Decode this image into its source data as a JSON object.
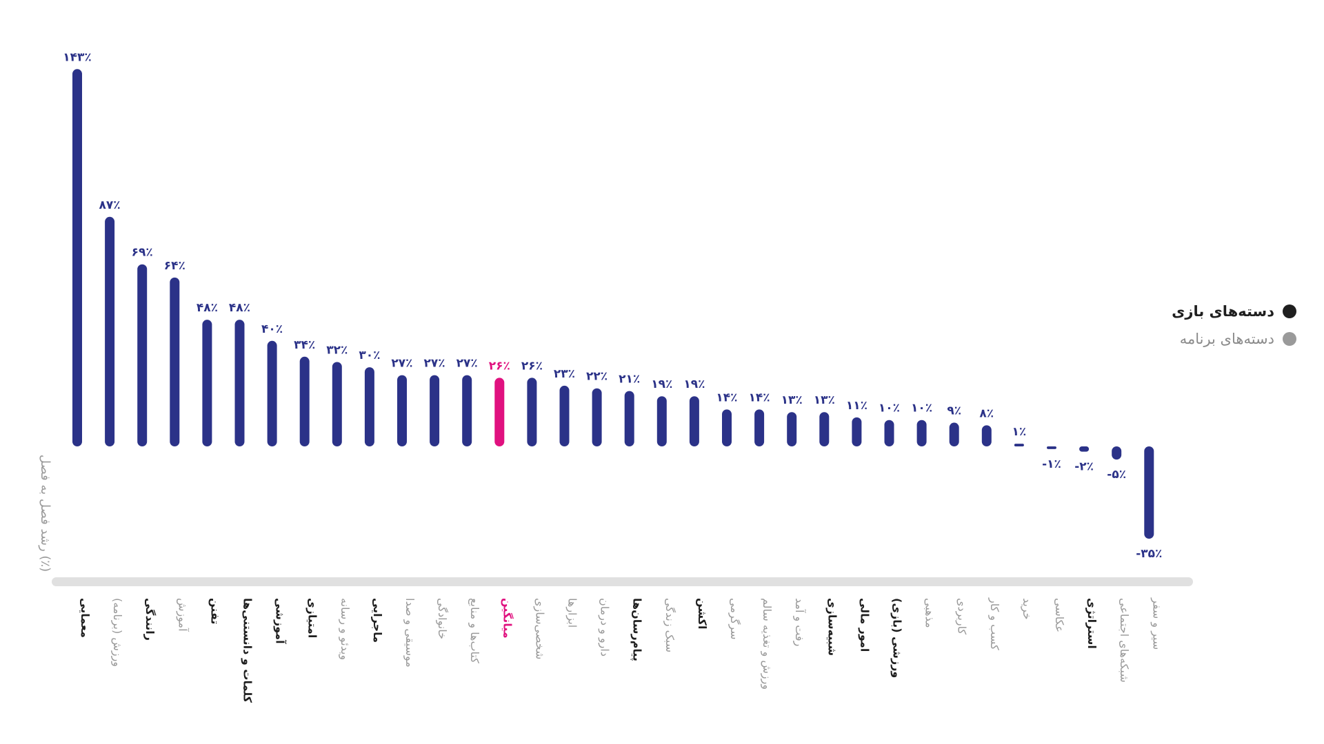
{
  "chart_data": {
    "type": "bar",
    "ylabel": "رشد فصل به فصل (٪)",
    "ylim": [
      -40,
      150
    ],
    "grid": false,
    "legend_position": "right",
    "colors": {
      "bar": "#2b3288",
      "highlight": "#e0117f",
      "game_label": "#1f1f1f",
      "app_label": "#9a9a9a",
      "value_label": "#2b3288",
      "baseline": "#e0e0e0"
    },
    "legend": [
      {
        "name": "دسته‌های بازی",
        "color": "#1f1f1f"
      },
      {
        "name": "دسته‌های برنامه",
        "color": "#9a9a9a"
      }
    ],
    "categories": [
      "معمایی",
      "ورزش (برنامه)",
      "رانندگی",
      "آموزش",
      "تفنن",
      "کلمات و دانستنی‌ها",
      "آموزشی",
      "امتیازی",
      "ویدئو و رسانه",
      "ماجرایی",
      "موسیقی و صدا",
      "خانوادگی",
      "کتاب‌ها و منابع",
      "میانگین",
      "شخصی‌سازی",
      "ابزارها",
      "دارو و درمان",
      "پیام‌رسان‌ها",
      "سبک زندگی",
      "اکشن",
      "سرگرمی",
      "ورزش و تغذیه سالم",
      "رفت و آمد",
      "شبیه‌سازی",
      "امور مالی",
      "ورزشی (بازی)",
      "مذهبی",
      "کاربردی",
      "کسب و کار",
      "خرید",
      "عکاسی",
      "استراتژی",
      "شبکه‌های اجتماعی",
      "سیر و سفر"
    ],
    "values": [
      143,
      87,
      69,
      64,
      48,
      48,
      40,
      34,
      32,
      30,
      27,
      27,
      27,
      26,
      26,
      23,
      22,
      21,
      19,
      19,
      14,
      14,
      13,
      13,
      11,
      10,
      10,
      9,
      8,
      1,
      -1,
      -2,
      -5,
      -35
    ],
    "value_labels": [
      "۱۴۳٪",
      "۸۷٪",
      "۶۹٪",
      "۶۴٪",
      "۴۸٪",
      "۴۸٪",
      "۴۰٪",
      "۳۴٪",
      "۳۲٪",
      "۳۰٪",
      "۲۷٪",
      "۲۷٪",
      "۲۷٪",
      "۲۶٪",
      "۲۶٪",
      "۲۳٪",
      "۲۲٪",
      "۲۱٪",
      "۱۹٪",
      "۱۹٪",
      "۱۴٪",
      "۱۴٪",
      "۱۳٪",
      "۱۳٪",
      "۱۱٪",
      "۱۰٪",
      "۱۰٪",
      "۹٪",
      "۸٪",
      "۱٪",
      "-۱٪",
      "-۲٪",
      "-۵٪",
      "-۳۵٪"
    ],
    "category_kind": [
      "game",
      "app",
      "game",
      "app",
      "game",
      "game",
      "game",
      "game",
      "app",
      "game",
      "app",
      "app",
      "app",
      "average",
      "app",
      "app",
      "app",
      "game",
      "app",
      "game",
      "app",
      "app",
      "app",
      "game",
      "game",
      "game",
      "app",
      "app",
      "app",
      "app",
      "app",
      "game",
      "app",
      "app"
    ],
    "highlight_category": "میانگین"
  }
}
